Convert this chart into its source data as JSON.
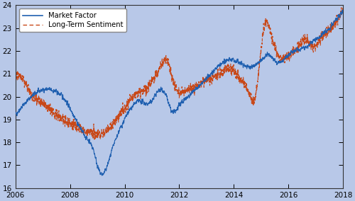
{
  "xlim": [
    2006.0,
    2018.0
  ],
  "ylim": [
    16,
    24
  ],
  "yticks": [
    16,
    17,
    18,
    19,
    20,
    21,
    22,
    23,
    24
  ],
  "xticks": [
    2006,
    2008,
    2010,
    2012,
    2014,
    2016,
    2018
  ],
  "background_color": "#b8c8e8",
  "market_factor_color": "#2060b0",
  "sentiment_color": "#c84818",
  "legend_labels": [
    "Market Factor",
    "Long-Term Sentiment"
  ],
  "market_factor_linewidth": 0.8,
  "sentiment_linewidth": 0.8,
  "n_points": 3000,
  "mf_wx": [
    2006.0,
    2006.2,
    2006.5,
    2007.0,
    2007.5,
    2007.8,
    2008.0,
    2008.3,
    2008.6,
    2008.9,
    2009.0,
    2009.2,
    2009.5,
    2009.8,
    2010.0,
    2010.3,
    2010.6,
    2010.9,
    2011.2,
    2011.5,
    2011.7,
    2012.0,
    2012.3,
    2012.6,
    2013.0,
    2013.4,
    2013.8,
    2014.2,
    2014.6,
    2015.0,
    2015.3,
    2015.6,
    2015.9,
    2016.2,
    2016.5,
    2016.8,
    2017.1,
    2017.5,
    2017.9,
    2018.0
  ],
  "mf_wy": [
    19.2,
    19.5,
    19.9,
    20.3,
    20.2,
    19.9,
    19.5,
    18.8,
    18.2,
    17.5,
    17.0,
    16.6,
    17.5,
    18.5,
    19.0,
    19.6,
    19.8,
    19.7,
    20.2,
    20.1,
    19.4,
    19.6,
    20.0,
    20.3,
    20.8,
    21.3,
    21.6,
    21.5,
    21.3,
    21.6,
    21.8,
    21.5,
    21.7,
    22.0,
    22.1,
    22.3,
    22.6,
    23.0,
    23.6,
    23.7
  ],
  "lt_wx": [
    2006.0,
    2006.1,
    2006.3,
    2006.6,
    2007.0,
    2007.3,
    2007.6,
    2007.9,
    2008.2,
    2008.5,
    2008.8,
    2009.1,
    2009.4,
    2009.7,
    2010.0,
    2010.3,
    2010.7,
    2011.0,
    2011.3,
    2011.6,
    2011.8,
    2012.0,
    2012.3,
    2012.7,
    2013.1,
    2013.5,
    2013.9,
    2014.2,
    2014.5,
    2014.8,
    2015.1,
    2015.4,
    2015.7,
    2016.0,
    2016.3,
    2016.6,
    2016.9,
    2017.2,
    2017.6,
    2018.0
  ],
  "lt_wy": [
    21.0,
    21.0,
    20.7,
    20.1,
    19.7,
    19.4,
    19.1,
    18.9,
    18.7,
    18.5,
    18.4,
    18.4,
    18.6,
    19.0,
    19.5,
    20.0,
    20.3,
    20.7,
    21.3,
    21.5,
    20.6,
    20.2,
    20.3,
    20.5,
    20.8,
    21.0,
    21.2,
    20.8,
    20.3,
    20.1,
    23.0,
    22.6,
    21.7,
    21.8,
    22.1,
    22.5,
    22.2,
    22.6,
    23.1,
    23.8
  ]
}
